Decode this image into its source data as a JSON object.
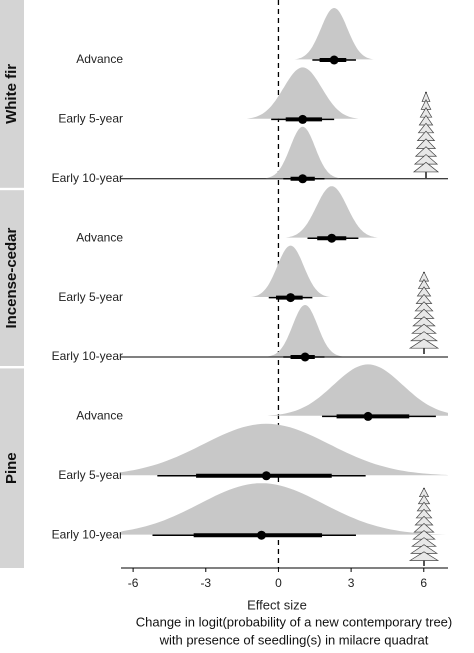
{
  "chart_data": {
    "type": "halfeye",
    "xlabel": "Effect size",
    "caption": [
      "Change in logit(probability of a new contemporary tree)",
      "with presence of seedling(s) in milacre quadrat"
    ],
    "xlim": [
      -6.5,
      7.0
    ],
    "xticks": [
      -6,
      -3,
      0,
      3,
      6
    ],
    "reference_line": 0,
    "color": "#c8c8c8",
    "point_color": "#000000",
    "facets": [
      {
        "name": "White fir",
        "categories": [
          "Advance",
          "Early 5-year",
          "Early 10-year"
        ],
        "values": [
          2.3,
          1.0,
          1.0
        ],
        "thick_low": [
          1.7,
          0.3,
          0.5
        ],
        "thick_high": [
          2.8,
          1.8,
          1.5
        ],
        "thin_low": [
          1.4,
          -0.3,
          0.2
        ],
        "thin_high": [
          3.2,
          2.3,
          1.9
        ]
      },
      {
        "name": "Incense-cedar",
        "categories": [
          "Advance",
          "Early 5-year",
          "Early 10-year"
        ],
        "values": [
          2.2,
          0.5,
          1.1
        ],
        "thick_low": [
          1.6,
          -0.1,
          0.5
        ],
        "thick_high": [
          2.8,
          1.0,
          1.5
        ],
        "thin_low": [
          1.2,
          -0.4,
          0.2
        ],
        "thin_high": [
          3.3,
          1.4,
          1.9
        ]
      },
      {
        "name": "Pine",
        "categories": [
          "Advance",
          "Early 5-year",
          "Early 10-year"
        ],
        "values": [
          3.7,
          -0.5,
          -0.7
        ],
        "thick_low": [
          2.4,
          -3.4,
          -3.5
        ],
        "thick_high": [
          5.4,
          2.2,
          1.8
        ],
        "thin_low": [
          1.8,
          -5.0,
          -5.2
        ],
        "thin_high": [
          6.5,
          3.6,
          3.2
        ]
      }
    ]
  }
}
